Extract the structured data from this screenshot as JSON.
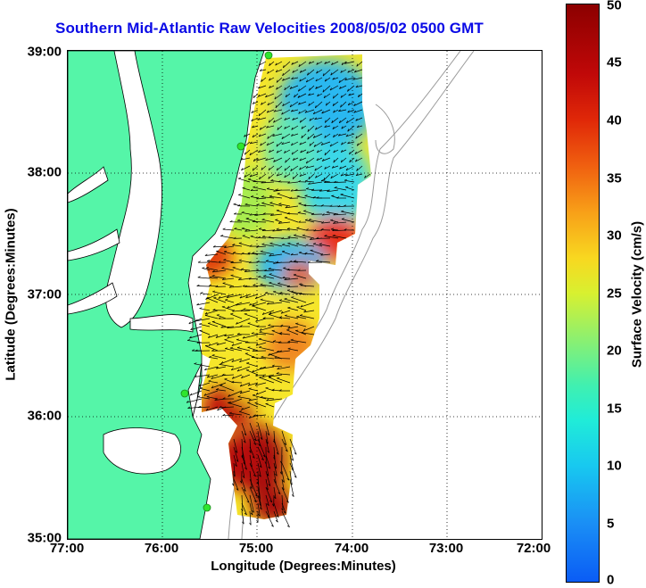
{
  "title": "Southern Mid-Atlantic Raw Velocities 2008/05/02 0500 GMT",
  "xlabel": "Longitude (Degrees:Minutes)",
  "ylabel": "Latitude (Degrees:Minutes)",
  "xticks": [
    "77:00",
    "76:00",
    "75:00",
    "74:00",
    "73:00",
    "72:00"
  ],
  "yticks": [
    "39:00",
    "38:00",
    "37:00",
    "36:00",
    "35:00"
  ],
  "colorbar": {
    "label": "Surface Velocity (cm/s)",
    "ticks": [
      "50",
      "45",
      "40",
      "35",
      "30",
      "25",
      "20",
      "15",
      "10",
      "5",
      "0"
    ],
    "min": 0,
    "max": 50
  },
  "colors": {
    "land": "#55f5a8",
    "title": "#0a0ae6",
    "station": "#2ee62e"
  },
  "map_extent": {
    "lon": [
      -77,
      -72
    ],
    "lat": [
      35,
      39
    ]
  }
}
